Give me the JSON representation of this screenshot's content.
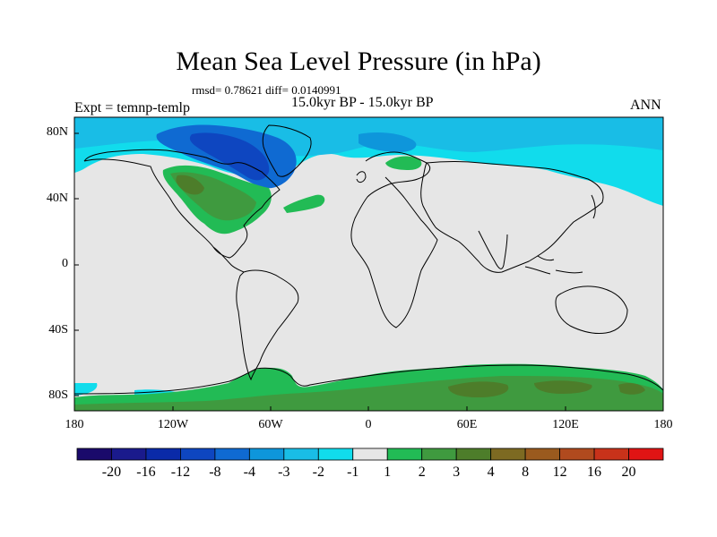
{
  "title": "Mean Sea Level Pressure (in hPa)",
  "stats": "rmsd= 0.78621 diff= 0.0140991",
  "period": "15.0kyr BP - 15.0kyr BP",
  "expt": "Expt = temnp-temlp",
  "season": "ANN",
  "lat_labels": [
    "80N",
    "40N",
    "0",
    "40S",
    "80S"
  ],
  "lon_labels": [
    "180",
    "120W",
    "60W",
    "0",
    "60E",
    "120E",
    "180"
  ],
  "colorbar": {
    "colors": [
      "#1a0a6b",
      "#1a1a8c",
      "#0a2aa8",
      "#0e46c0",
      "#0f6ad2",
      "#0e96db",
      "#19bde6",
      "#11dcec",
      "#e6e6e6",
      "#22bb55",
      "#3f9a3f",
      "#4d7d2a",
      "#7d6a22",
      "#9a5a1e",
      "#b04a1e",
      "#c8321a",
      "#e01414"
    ],
    "labels": [
      "-20",
      "-16",
      "-12",
      "-8",
      "-4",
      "-3",
      "-2",
      "-1",
      "1",
      "2",
      "3",
      "4",
      "8",
      "12",
      "16",
      "20"
    ]
  },
  "colors": {
    "neutral": "#e6e6e6",
    "cyan": "#11dcec",
    "light_blue": "#19bde6",
    "blue": "#0f6ad2",
    "dark_blue": "#0e46c0",
    "green": "#22bb55",
    "dark_green": "#3f9a3f",
    "olive": "#4d7d2a"
  }
}
